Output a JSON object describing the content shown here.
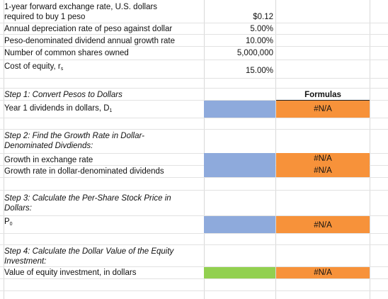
{
  "inputs": [
    {
      "label_line1": "1-year forward exchange rate, U.S. dollars",
      "label_line2": "required to buy 1 peso",
      "value": "$0.12"
    },
    {
      "label": "Annual depreciation rate of peso against dollar",
      "value": "5.00%"
    },
    {
      "label": "Peso-denominated dividend annual growth rate",
      "value": "10.00%"
    },
    {
      "label": "Number of common shares owned",
      "value": "5,000,000"
    },
    {
      "label": "Cost of equity, r",
      "subscript": "s",
      "value": "15.00%"
    }
  ],
  "formulas_header": "Formulas",
  "steps": [
    {
      "title": "Step 1:  Convert Pesos to Dollars",
      "rows": [
        {
          "label": "Year 1 dividends in dollars, D",
          "subscript": "1",
          "formula": "#N/A",
          "input_color": "#8eaadc"
        }
      ]
    },
    {
      "title_line1": "Step 2:  Find the Growth Rate in Dollar-",
      "title_line2": "Denominated Divdiends:",
      "rows": [
        {
          "label": "Growth in exchange rate",
          "formula": "#N/A",
          "input_color": "#8eaadc"
        },
        {
          "label": "Growth rate in dollar-denominated dividends",
          "formula": "#N/A",
          "input_color": "#8eaadc"
        }
      ]
    },
    {
      "title_line1": "Step 3:  Calculate the Per-Share Stock Price in",
      "title_line2": "Dollars:",
      "rows": [
        {
          "label": "P",
          "subscript": "0",
          "formula": "#N/A",
          "input_color": "#8eaadc"
        }
      ]
    },
    {
      "title_line1": "Step 4:  Calculate the Dollar Value of the Equity",
      "title_line2": "Investment:",
      "rows": [
        {
          "label": "Value of equity investment, in dollars",
          "formula": "#N/A",
          "input_color": "#92d050"
        }
      ]
    }
  ]
}
